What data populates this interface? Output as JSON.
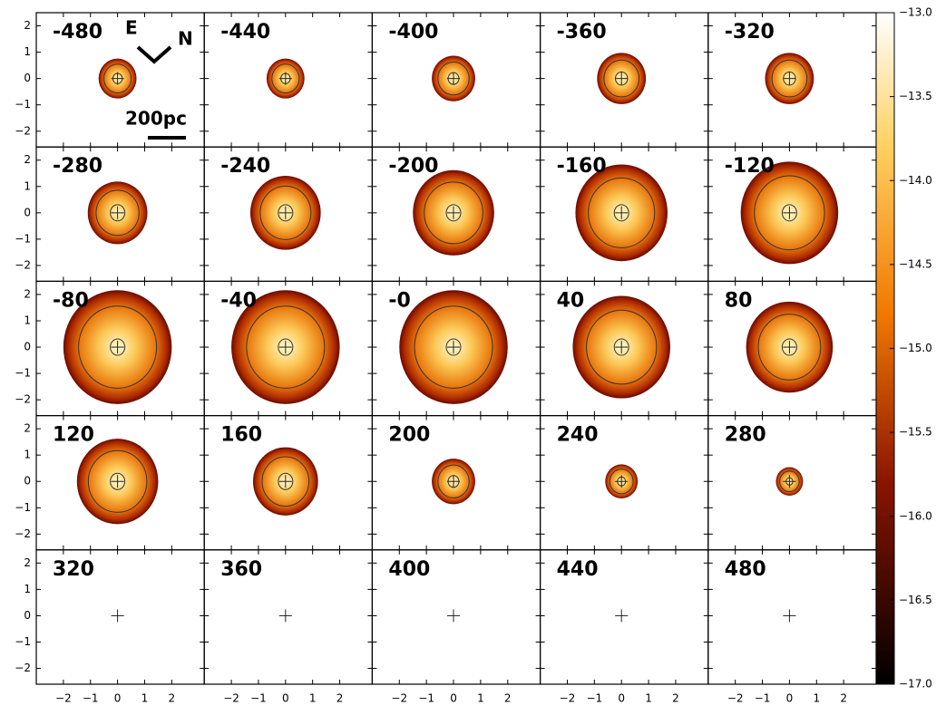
{
  "chart_data": {
    "type": "channel-maps",
    "panels": [
      {
        "label": "-480",
        "radius": 0.7
      },
      {
        "label": "-440",
        "radius": 0.7
      },
      {
        "label": "-400",
        "radius": 0.8
      },
      {
        "label": "-360",
        "radius": 0.9
      },
      {
        "label": "-320",
        "radius": 0.9
      },
      {
        "label": "-280",
        "radius": 1.1
      },
      {
        "label": "-240",
        "radius": 1.3
      },
      {
        "label": "-200",
        "radius": 1.5
      },
      {
        "label": "-160",
        "radius": 1.7
      },
      {
        "label": "-120",
        "radius": 1.8
      },
      {
        "label": "-80",
        "radius": 2.0
      },
      {
        "label": "-40",
        "radius": 2.0
      },
      {
        "label": "-0",
        "radius": 2.0
      },
      {
        "label": "40",
        "radius": 1.8
      },
      {
        "label": "80",
        "radius": 1.6
      },
      {
        "label": "120",
        "radius": 1.5
      },
      {
        "label": "160",
        "radius": 1.2
      },
      {
        "label": "200",
        "radius": 0.8
      },
      {
        "label": "240",
        "radius": 0.6
      },
      {
        "label": "280",
        "radius": 0.5
      },
      {
        "label": "320",
        "radius": 0
      },
      {
        "label": "360",
        "radius": 0
      },
      {
        "label": "400",
        "radius": 0
      },
      {
        "label": "440",
        "radius": 0
      },
      {
        "label": "480",
        "radius": 0
      }
    ],
    "xlim": [
      -3,
      3.2
    ],
    "ylim": [
      -2.6,
      2.5
    ],
    "xticks": [
      {
        "value": -2,
        "label": "−2"
      },
      {
        "value": -1,
        "label": "−1"
      },
      0,
      1,
      2
    ],
    "yticks": [
      {
        "value": -2,
        "label": "−2"
      },
      {
        "value": -1,
        "label": "−1"
      },
      0,
      1,
      2
    ],
    "colorbar": {
      "lim": [
        -17,
        -13
      ],
      "ticks": [
        {
          "value": -17,
          "label": "−17.0"
        },
        {
          "value": -16.5,
          "label": "−16.5"
        },
        {
          "value": -16,
          "label": "−16.0"
        },
        {
          "value": -15.5,
          "label": "−15.5"
        },
        {
          "value": -15,
          "label": "−15.0"
        },
        {
          "value": -14.5,
          "label": "−14.5"
        },
        {
          "value": -14,
          "label": "−14.0"
        },
        {
          "value": -13.5,
          "label": "−13.5"
        },
        {
          "value": -13,
          "label": "−13.0"
        }
      ]
    },
    "annotations": {
      "east": "E",
      "north": "N",
      "scale": "200pc"
    }
  }
}
